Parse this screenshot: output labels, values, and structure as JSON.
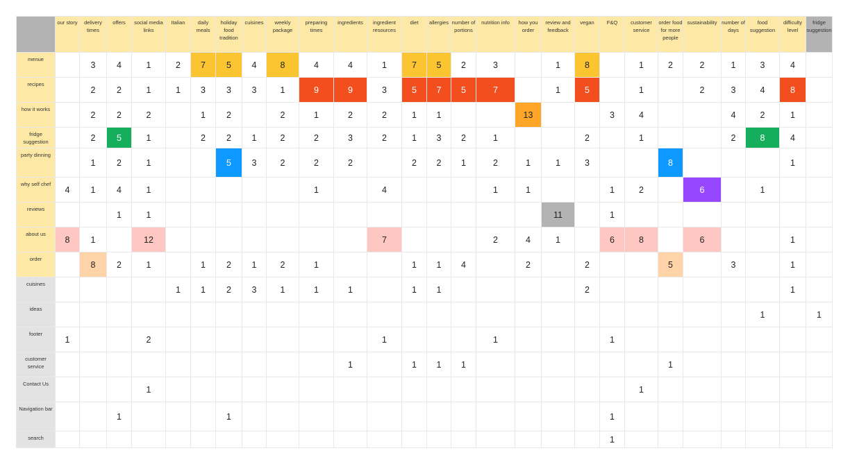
{
  "chart_data": {
    "type": "table",
    "columns": [
      "our story",
      "delivery times",
      "offers",
      "social media links",
      "Italian",
      "daily meals",
      "holiday food tradition",
      "cuisines",
      "weekly package",
      "preparing times",
      "ingredients",
      "ingredient resources",
      "diet",
      "allergies",
      "number of portions",
      "nutrition info",
      "how you order",
      "review and feedback",
      "vegan",
      "F&Q",
      "customer service",
      "order food for more people",
      "sustainability",
      "number of days",
      "food suggestion",
      "difficulty level",
      "fridge suggestion"
    ],
    "rows": [
      {
        "label": "menue",
        "values": [
          null,
          3,
          4,
          1,
          2,
          7,
          5,
          4,
          8,
          4,
          4,
          1,
          7,
          5,
          2,
          3,
          null,
          1,
          8,
          null,
          1,
          2,
          2,
          1,
          3,
          4,
          null
        ]
      },
      {
        "label": "recipes",
        "values": [
          null,
          2,
          2,
          1,
          1,
          3,
          3,
          3,
          1,
          9,
          9,
          3,
          5,
          7,
          5,
          7,
          null,
          1,
          5,
          null,
          1,
          null,
          2,
          3,
          4,
          8,
          null
        ]
      },
      {
        "label": "how it works",
        "values": [
          null,
          2,
          2,
          2,
          null,
          1,
          2,
          null,
          2,
          1,
          2,
          2,
          1,
          1,
          null,
          null,
          13,
          null,
          null,
          3,
          4,
          null,
          null,
          4,
          2,
          1,
          null
        ]
      },
      {
        "label": "fridge suggestion",
        "values": [
          null,
          2,
          5,
          1,
          null,
          2,
          2,
          1,
          2,
          2,
          3,
          2,
          1,
          3,
          2,
          1,
          null,
          null,
          2,
          null,
          1,
          null,
          null,
          2,
          8,
          4,
          null
        ]
      },
      {
        "label": "party dinning",
        "values": [
          null,
          1,
          2,
          1,
          null,
          null,
          5,
          3,
          2,
          2,
          2,
          null,
          2,
          2,
          1,
          2,
          1,
          1,
          3,
          null,
          null,
          8,
          null,
          null,
          null,
          1,
          null
        ]
      },
      {
        "label": "why self chef",
        "values": [
          4,
          1,
          4,
          1,
          null,
          null,
          null,
          null,
          null,
          1,
          null,
          4,
          null,
          null,
          null,
          1,
          1,
          null,
          null,
          1,
          2,
          null,
          6,
          null,
          1,
          null,
          null
        ]
      },
      {
        "label": "reviews",
        "values": [
          null,
          null,
          1,
          1,
          null,
          null,
          null,
          null,
          null,
          null,
          null,
          null,
          null,
          null,
          null,
          null,
          null,
          11,
          null,
          1,
          null,
          null,
          null,
          null,
          null,
          null,
          null
        ]
      },
      {
        "label": "about us",
        "values": [
          8,
          1,
          null,
          12,
          null,
          null,
          null,
          null,
          null,
          null,
          null,
          7,
          null,
          null,
          null,
          2,
          4,
          1,
          null,
          6,
          8,
          null,
          6,
          null,
          null,
          1,
          null
        ]
      },
      {
        "label": "order",
        "values": [
          null,
          8,
          2,
          1,
          null,
          1,
          2,
          1,
          2,
          1,
          null,
          null,
          1,
          1,
          4,
          null,
          2,
          null,
          2,
          null,
          null,
          5,
          null,
          3,
          null,
          1,
          null
        ]
      },
      {
        "label": "cuisines",
        "values": [
          null,
          null,
          null,
          null,
          1,
          1,
          2,
          3,
          1,
          1,
          1,
          null,
          1,
          1,
          null,
          null,
          null,
          null,
          2,
          null,
          null,
          null,
          null,
          null,
          null,
          1,
          null
        ]
      },
      {
        "label": "ideas",
        "values": [
          null,
          null,
          null,
          null,
          null,
          null,
          null,
          null,
          null,
          null,
          null,
          null,
          null,
          null,
          null,
          null,
          null,
          null,
          null,
          null,
          null,
          null,
          null,
          null,
          1,
          null,
          1
        ]
      },
      {
        "label": "footer",
        "values": [
          1,
          null,
          null,
          2,
          null,
          null,
          null,
          null,
          null,
          null,
          null,
          1,
          null,
          null,
          null,
          1,
          null,
          null,
          null,
          1,
          null,
          null,
          null,
          null,
          null,
          null,
          null
        ]
      },
      {
        "label": "customer service",
        "values": [
          null,
          null,
          null,
          null,
          null,
          null,
          null,
          null,
          null,
          null,
          1,
          null,
          1,
          1,
          1,
          null,
          null,
          null,
          null,
          null,
          null,
          1,
          null,
          null,
          null,
          null,
          null
        ]
      },
      {
        "label": "Contact Us",
        "values": [
          null,
          null,
          null,
          1,
          null,
          null,
          null,
          null,
          null,
          null,
          null,
          null,
          null,
          null,
          null,
          null,
          null,
          null,
          null,
          null,
          1,
          null,
          null,
          null,
          null,
          null,
          null
        ]
      },
      {
        "label": "Navigation bar",
        "values": [
          null,
          null,
          1,
          null,
          null,
          null,
          1,
          null,
          null,
          null,
          null,
          null,
          null,
          null,
          null,
          null,
          null,
          null,
          null,
          1,
          null,
          null,
          null,
          null,
          null,
          null,
          null
        ]
      },
      {
        "label": "search",
        "values": [
          null,
          null,
          null,
          null,
          null,
          null,
          null,
          null,
          null,
          null,
          null,
          null,
          null,
          null,
          null,
          null,
          null,
          null,
          null,
          1,
          null,
          null,
          null,
          null,
          null,
          null,
          null
        ]
      }
    ],
    "highlights": [
      {
        "row": 0,
        "col": 5,
        "color": "#fbc531"
      },
      {
        "row": 0,
        "col": 6,
        "color": "#fbc531"
      },
      {
        "row": 0,
        "col": 8,
        "color": "#fbc531"
      },
      {
        "row": 0,
        "col": 12,
        "color": "#fbc531"
      },
      {
        "row": 0,
        "col": 13,
        "color": "#fbc531"
      },
      {
        "row": 0,
        "col": 18,
        "color": "#fbc531"
      },
      {
        "row": 1,
        "col": 9,
        "color": "#f24e1e"
      },
      {
        "row": 1,
        "col": 10,
        "color": "#f24e1e"
      },
      {
        "row": 1,
        "col": 12,
        "color": "#f24e1e"
      },
      {
        "row": 1,
        "col": 13,
        "color": "#f24e1e"
      },
      {
        "row": 1,
        "col": 14,
        "color": "#f24e1e"
      },
      {
        "row": 1,
        "col": 15,
        "color": "#f24e1e"
      },
      {
        "row": 1,
        "col": 18,
        "color": "#f24e1e"
      },
      {
        "row": 1,
        "col": 25,
        "color": "#f24e1e"
      },
      {
        "row": 2,
        "col": 16,
        "color": "#ffa629"
      },
      {
        "row": 3,
        "col": 2,
        "color": "#14ae5c"
      },
      {
        "row": 3,
        "col": 24,
        "color": "#14ae5c"
      },
      {
        "row": 4,
        "col": 6,
        "color": "#0d99ff"
      },
      {
        "row": 4,
        "col": 21,
        "color": "#0d99ff"
      },
      {
        "row": 5,
        "col": 22,
        "color": "#9747ff"
      },
      {
        "row": 6,
        "col": 17,
        "color": "#b3b3b3"
      },
      {
        "row": 7,
        "col": 0,
        "color": "#ffc7c2"
      },
      {
        "row": 7,
        "col": 3,
        "color": "#ffc7c2"
      },
      {
        "row": 7,
        "col": 11,
        "color": "#ffc7c2"
      },
      {
        "row": 7,
        "col": 19,
        "color": "#ffc7c2"
      },
      {
        "row": 7,
        "col": 20,
        "color": "#ffc7c2"
      },
      {
        "row": 7,
        "col": 22,
        "color": "#ffc7c2"
      },
      {
        "row": 8,
        "col": 1,
        "color": "#ffd3a8"
      },
      {
        "row": 8,
        "col": 21,
        "color": "#ffd3a8"
      }
    ],
    "header_color": "#fde8a6",
    "muted_header_color": "#b3b3b3",
    "muted_row_color": "#e3e3e3",
    "muted_column": 26,
    "muted_from_row": 9
  }
}
